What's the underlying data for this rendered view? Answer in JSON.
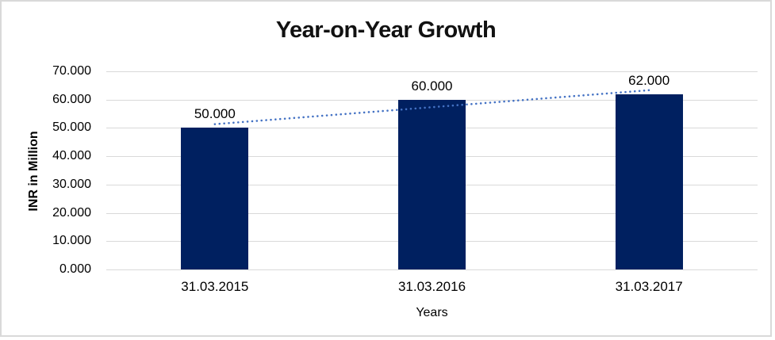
{
  "chart_data": {
    "type": "bar",
    "title": "Year-on-Year Growth",
    "categories": [
      "31.03.2015",
      "31.03.2016",
      "31.03.2017"
    ],
    "values": [
      50.0,
      60.0,
      62.0
    ],
    "data_labels": [
      "50.000",
      "60.000",
      "62.000"
    ],
    "xlabel": "Years",
    "ylabel": "INR in Million",
    "ylim": [
      0,
      70
    ],
    "yticks": [
      0,
      10,
      20,
      30,
      40,
      50,
      60,
      70
    ],
    "ytick_labels": [
      "0.000",
      "10.000",
      "20.000",
      "30.000",
      "40.000",
      "50.000",
      "60.000",
      "70.000"
    ],
    "grid": true,
    "legend": "none",
    "bar_color": "#002060",
    "gridline_color": "#d9d9d9",
    "trendline": {
      "type": "linear",
      "style": "dotted",
      "color": "#4472C4",
      "start_value": 51.33,
      "end_value": 63.33
    }
  },
  "window": {
    "background": "#ffffff",
    "border_color": "#d9d9d9"
  }
}
